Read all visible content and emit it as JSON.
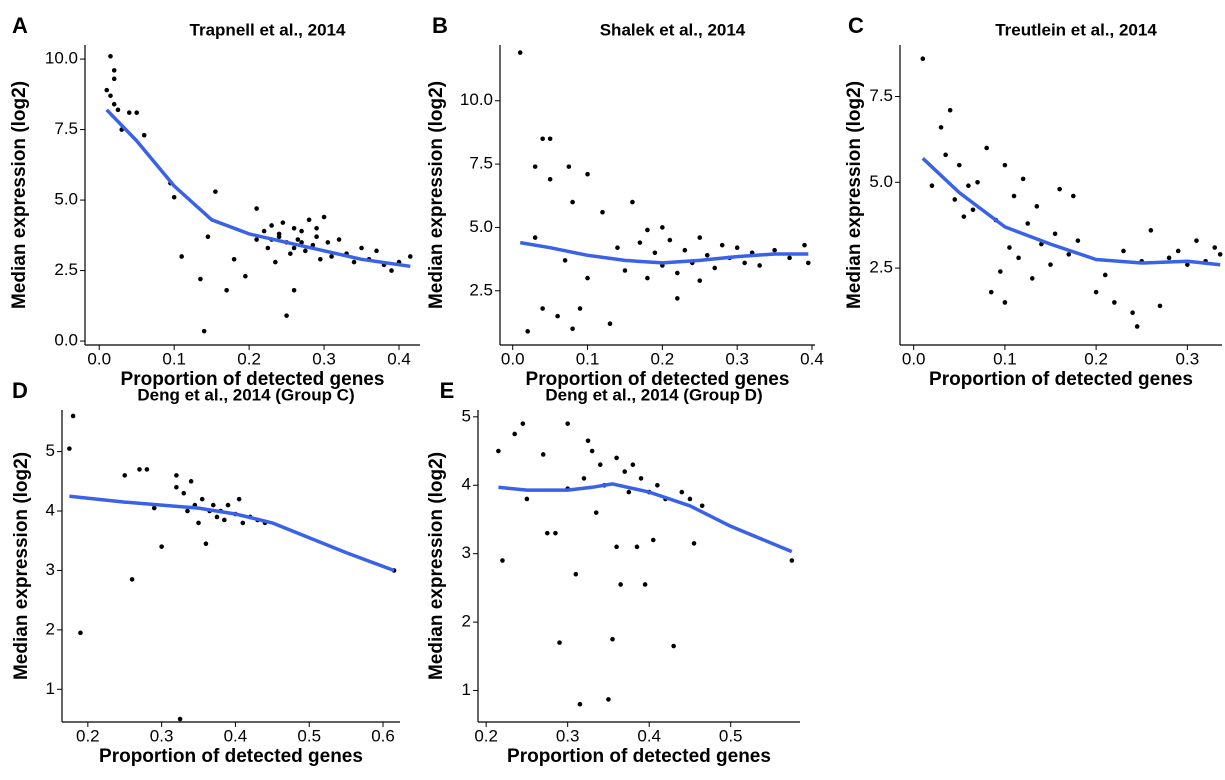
{
  "chart_data": [
    {
      "type": "scatter",
      "panel_label": "A",
      "title": "Trapnell et al., 2014",
      "x_label": "Proportion of detected genes",
      "y_label": "Median expression (log2)",
      "xlim": [
        -0.019,
        0.428
      ],
      "ylim": [
        -0.14,
        10.5
      ],
      "xticks": [
        {
          "value": 0,
          "label": "0.0"
        },
        0.1,
        0.2,
        0.3,
        0.4
      ],
      "yticks": [
        {
          "value": 0,
          "label": "0.0"
        },
        2.5,
        {
          "value": 5,
          "label": "5.0"
        },
        7.5,
        {
          "value": 10,
          "label": "10.0"
        }
      ],
      "points": {
        "color": "#000000",
        "x": [
          0.01,
          0.015,
          0.02,
          0.02,
          0.015,
          0.02,
          0.025,
          0.03,
          0.04,
          0.05,
          0.06,
          0.095,
          0.1,
          0.11,
          0.135,
          0.14,
          0.145,
          0.155,
          0.17,
          0.18,
          0.195,
          0.21,
          0.21,
          0.22,
          0.225,
          0.23,
          0.235,
          0.24,
          0.245,
          0.25,
          0.25,
          0.255,
          0.26,
          0.26,
          0.265,
          0.27,
          0.275,
          0.28,
          0.285,
          0.29,
          0.295,
          0.3,
          0.305,
          0.31,
          0.32,
          0.33,
          0.34,
          0.35,
          0.36,
          0.37,
          0.38,
          0.39,
          0.4,
          0.415,
          0.24,
          0.27,
          0.29,
          0.26,
          0.23
        ],
        "y": [
          8.9,
          10.1,
          9.6,
          9.3,
          8.7,
          8.4,
          8.2,
          7.5,
          8.1,
          8.1,
          7.3,
          5.6,
          5.1,
          3.0,
          2.2,
          0.35,
          3.7,
          5.3,
          1.8,
          2.9,
          2.3,
          4.7,
          3.6,
          3.9,
          3.3,
          4.1,
          2.8,
          3.8,
          4.2,
          3.5,
          0.9,
          3.1,
          4.0,
          1.8,
          3.6,
          3.9,
          3.2,
          4.3,
          3.4,
          3.7,
          2.9,
          4.4,
          3.5,
          3.0,
          3.6,
          3.1,
          2.8,
          3.3,
          2.9,
          3.2,
          2.7,
          2.5,
          2.8,
          3.0,
          3.7,
          3.5,
          4.0,
          3.3,
          3.6
        ]
      },
      "curve": {
        "color": "#3a62e8",
        "x": [
          0.01,
          0.05,
          0.1,
          0.15,
          0.2,
          0.25,
          0.3,
          0.35,
          0.415
        ],
        "y": [
          8.2,
          7.1,
          5.5,
          4.3,
          3.8,
          3.5,
          3.2,
          2.9,
          2.65
        ]
      }
    },
    {
      "type": "scatter",
      "panel_label": "B",
      "title": "Shalek et al., 2014",
      "x_label": "Proportion of detected genes",
      "y_label": "Median expression (log2)",
      "xlim": [
        -0.017,
        0.404
      ],
      "ylim": [
        0.36,
        12.2
      ],
      "xticks": [
        {
          "value": 0,
          "label": "0.0"
        },
        0.1,
        0.2,
        0.3,
        0.4
      ],
      "yticks": [
        2.5,
        {
          "value": 5,
          "label": "5.0"
        },
        7.5,
        {
          "value": 10,
          "label": "10.0"
        }
      ],
      "points": {
        "color": "#000000",
        "x": [
          0.01,
          0.03,
          0.03,
          0.04,
          0.05,
          0.05,
          0.06,
          0.07,
          0.075,
          0.08,
          0.08,
          0.09,
          0.1,
          0.1,
          0.12,
          0.14,
          0.15,
          0.16,
          0.17,
          0.18,
          0.19,
          0.2,
          0.21,
          0.22,
          0.22,
          0.23,
          0.24,
          0.25,
          0.25,
          0.26,
          0.27,
          0.28,
          0.29,
          0.3,
          0.31,
          0.32,
          0.33,
          0.35,
          0.37,
          0.39,
          0.395,
          0.02,
          0.04,
          0.13,
          0.2,
          0.18
        ],
        "y": [
          11.9,
          4.6,
          7.4,
          8.5,
          8.5,
          6.9,
          1.5,
          3.7,
          7.4,
          6.0,
          1.0,
          1.8,
          7.1,
          3.0,
          5.6,
          4.2,
          3.3,
          6.0,
          4.4,
          3.0,
          4.0,
          3.5,
          4.5,
          3.2,
          2.2,
          4.1,
          3.6,
          4.6,
          2.9,
          3.9,
          3.4,
          4.3,
          3.8,
          4.2,
          3.6,
          4.0,
          3.5,
          4.1,
          3.8,
          4.3,
          3.6,
          0.9,
          1.8,
          1.2,
          5.0,
          4.9
        ]
      },
      "curve": {
        "color": "#3a62e8",
        "x": [
          0.01,
          0.05,
          0.1,
          0.15,
          0.2,
          0.25,
          0.3,
          0.35,
          0.395
        ],
        "y": [
          4.4,
          4.2,
          3.9,
          3.7,
          3.6,
          3.7,
          3.85,
          3.95,
          3.95
        ]
      }
    },
    {
      "type": "scatter",
      "panel_label": "C",
      "title": "Treutlein et al., 2014",
      "x_label": "Proportion of detected genes",
      "y_label": "Median expression (log2)",
      "xlim": [
        -0.015,
        0.338
      ],
      "ylim": [
        0.26,
        9.0
      ],
      "xticks": [
        {
          "value": 0,
          "label": "0.0"
        },
        0.1,
        0.2,
        0.3
      ],
      "yticks": [
        2.5,
        {
          "value": 5,
          "label": "5.0"
        },
        7.5
      ],
      "points": {
        "color": "#000000",
        "x": [
          0.01,
          0.02,
          0.03,
          0.035,
          0.04,
          0.045,
          0.05,
          0.055,
          0.06,
          0.065,
          0.07,
          0.08,
          0.085,
          0.09,
          0.095,
          0.1,
          0.1,
          0.105,
          0.11,
          0.115,
          0.12,
          0.125,
          0.13,
          0.135,
          0.14,
          0.15,
          0.155,
          0.16,
          0.17,
          0.175,
          0.18,
          0.2,
          0.21,
          0.22,
          0.23,
          0.24,
          0.245,
          0.25,
          0.26,
          0.27,
          0.28,
          0.29,
          0.3,
          0.31,
          0.32,
          0.33,
          0.336
        ],
        "y": [
          8.6,
          4.9,
          6.6,
          5.8,
          7.1,
          4.5,
          5.5,
          4.0,
          4.9,
          4.2,
          5.0,
          6.0,
          1.8,
          3.9,
          2.4,
          5.5,
          1.5,
          3.1,
          4.6,
          2.8,
          5.1,
          3.8,
          2.2,
          4.3,
          3.2,
          2.6,
          3.5,
          4.8,
          2.9,
          4.6,
          3.3,
          1.8,
          2.3,
          1.5,
          3.0,
          1.2,
          0.8,
          2.7,
          3.6,
          1.4,
          2.8,
          3.0,
          2.6,
          3.3,
          2.7,
          3.1,
          2.9
        ]
      },
      "curve": {
        "color": "#3a62e8",
        "x": [
          0.01,
          0.05,
          0.1,
          0.15,
          0.2,
          0.25,
          0.3,
          0.336
        ],
        "y": [
          5.7,
          4.7,
          3.7,
          3.2,
          2.75,
          2.65,
          2.7,
          2.6
        ]
      }
    },
    {
      "type": "scatter",
      "panel_label": "D",
      "title": "Deng et al., 2014 (Group C)",
      "x_label": "Proportion of detected genes",
      "y_label": "Median expression (log2)",
      "xlim": [
        0.165,
        0.623
      ],
      "ylim": [
        0.45,
        5.7
      ],
      "xticks": [
        0.2,
        0.3,
        0.4,
        0.5,
        0.6
      ],
      "yticks": [
        1,
        2,
        3,
        4,
        5
      ],
      "points": {
        "color": "#000000",
        "x": [
          0.175,
          0.18,
          0.19,
          0.25,
          0.26,
          0.27,
          0.28,
          0.29,
          0.3,
          0.32,
          0.32,
          0.325,
          0.33,
          0.335,
          0.34,
          0.345,
          0.35,
          0.355,
          0.36,
          0.365,
          0.37,
          0.375,
          0.38,
          0.385,
          0.39,
          0.4,
          0.405,
          0.41,
          0.42,
          0.43,
          0.44,
          0.615
        ],
        "y": [
          5.05,
          5.6,
          1.95,
          4.6,
          2.85,
          4.7,
          4.7,
          4.05,
          3.4,
          4.6,
          4.4,
          0.5,
          4.3,
          4.0,
          4.5,
          4.1,
          3.8,
          4.2,
          3.45,
          4.0,
          4.1,
          3.9,
          4.0,
          3.85,
          4.1,
          3.95,
          4.2,
          3.8,
          3.9,
          3.85,
          3.8,
          3.0
        ]
      },
      "curve": {
        "color": "#3a62e8",
        "x": [
          0.175,
          0.25,
          0.3,
          0.35,
          0.4,
          0.45,
          0.5,
          0.55,
          0.615
        ],
        "y": [
          4.25,
          4.15,
          4.1,
          4.05,
          3.95,
          3.8,
          3.55,
          3.3,
          3.0
        ]
      }
    },
    {
      "type": "scatter",
      "panel_label": "E",
      "title": "Deng et al., 2014 (Group D)",
      "x_label": "Proportion of detected genes",
      "y_label": "Median expression (log2)",
      "xlim": [
        0.19,
        0.585
      ],
      "ylim": [
        0.54,
        5.1
      ],
      "xticks": [
        0.2,
        0.3,
        0.4,
        0.5
      ],
      "yticks": [
        1,
        2,
        3,
        4,
        5
      ],
      "points": {
        "color": "#000000",
        "x": [
          0.215,
          0.22,
          0.235,
          0.245,
          0.25,
          0.27,
          0.275,
          0.285,
          0.29,
          0.3,
          0.3,
          0.31,
          0.315,
          0.32,
          0.325,
          0.33,
          0.335,
          0.34,
          0.345,
          0.35,
          0.355,
          0.36,
          0.36,
          0.365,
          0.37,
          0.375,
          0.38,
          0.385,
          0.39,
          0.395,
          0.4,
          0.405,
          0.41,
          0.42,
          0.43,
          0.44,
          0.45,
          0.455,
          0.465,
          0.575
        ],
        "y": [
          4.5,
          2.9,
          4.75,
          4.9,
          3.8,
          4.45,
          3.3,
          3.3,
          1.7,
          4.9,
          3.95,
          2.7,
          0.8,
          4.1,
          4.65,
          4.5,
          3.6,
          4.3,
          4.0,
          0.87,
          1.75,
          4.4,
          3.1,
          2.55,
          4.2,
          3.9,
          4.3,
          3.1,
          4.1,
          2.55,
          3.9,
          3.2,
          4.0,
          3.8,
          1.65,
          3.9,
          3.8,
          3.15,
          3.7,
          2.9
        ]
      },
      "curve": {
        "color": "#3a62e8",
        "x": [
          0.215,
          0.25,
          0.3,
          0.33,
          0.355,
          0.4,
          0.45,
          0.5,
          0.575
        ],
        "y": [
          3.97,
          3.93,
          3.93,
          3.97,
          4.02,
          3.9,
          3.7,
          3.4,
          3.03
        ]
      }
    }
  ]
}
